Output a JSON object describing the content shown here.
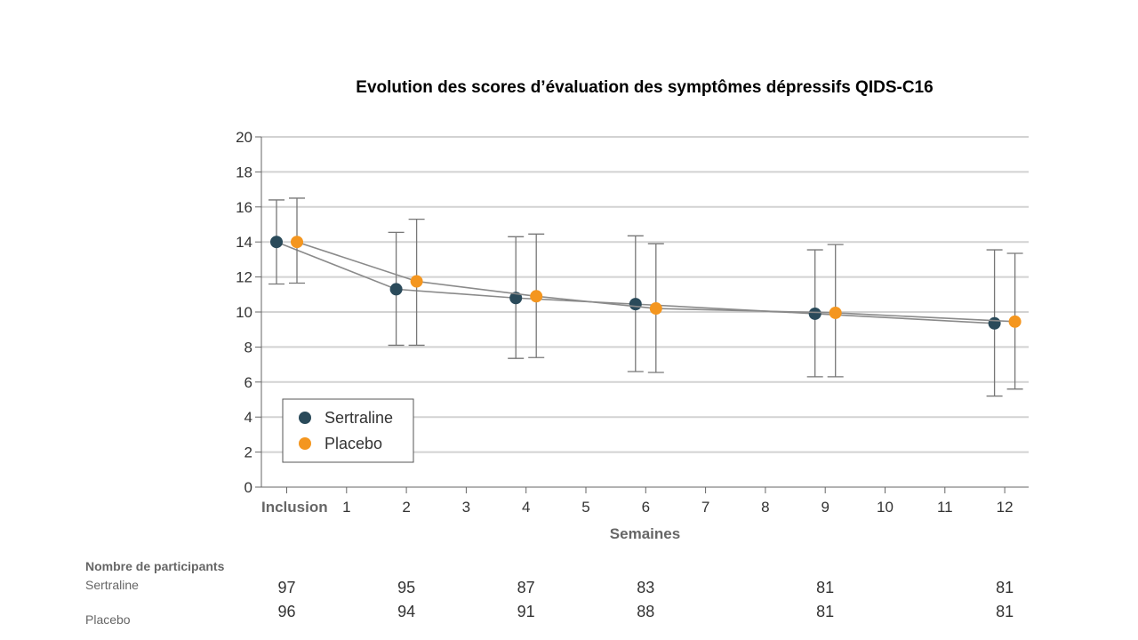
{
  "chart_data": {
    "type": "line",
    "title": "Evolution des scores d’évaluation des symptômes dépressifs QIDS-C16",
    "xlabel": "Semaines",
    "ylabel": "",
    "x_ticks": [
      "Inclusion",
      "1",
      "2",
      "3",
      "4",
      "5",
      "6",
      "7",
      "8",
      "9",
      "10",
      "11",
      "12"
    ],
    "xlim": [
      0,
      12
    ],
    "ylim": [
      0,
      20
    ],
    "y_ticks": [
      0,
      2,
      4,
      6,
      8,
      10,
      12,
      14,
      16,
      18,
      20
    ],
    "grid": true,
    "legend_position": "bottom-left",
    "error_bars": true,
    "series": [
      {
        "name": "Sertraline",
        "color": "#2a4a5a",
        "x": [
          0,
          2,
          4,
          6,
          9,
          12
        ],
        "values": [
          14.0,
          11.3,
          10.8,
          10.45,
          9.9,
          9.35
        ],
        "error_low": [
          11.6,
          8.1,
          7.35,
          6.6,
          6.3,
          5.2
        ],
        "error_high": [
          16.4,
          14.55,
          14.3,
          14.35,
          13.55,
          13.55
        ]
      },
      {
        "name": "Placebo",
        "color": "#f4961f",
        "x": [
          0,
          2,
          4,
          6,
          9,
          12
        ],
        "values": [
          14.0,
          11.75,
          10.9,
          10.2,
          9.95,
          9.45
        ],
        "error_low": [
          11.65,
          8.1,
          7.4,
          6.55,
          6.3,
          5.6
        ],
        "error_high": [
          16.5,
          15.3,
          14.45,
          13.9,
          13.85,
          13.35
        ]
      }
    ]
  },
  "participants": {
    "title": "Nombre de participants",
    "sertraline_label": "Sertraline",
    "placebo_label": "Placebo",
    "weeks": [
      0,
      2,
      4,
      6,
      9,
      12
    ],
    "sertraline_counts": [
      "97",
      "95",
      "87",
      "83",
      "81",
      "81"
    ],
    "placebo_counts": [
      "96",
      "94",
      "91",
      "88",
      "81",
      "81"
    ]
  }
}
